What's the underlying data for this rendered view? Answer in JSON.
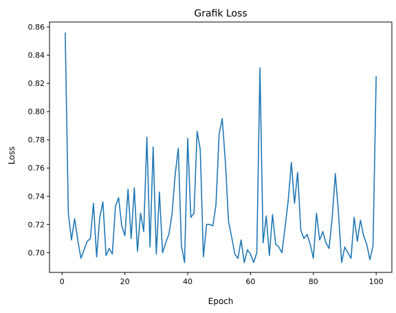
{
  "chart_data": {
    "type": "line",
    "title": "Grafik Loss",
    "xlabel": "Epoch",
    "ylabel": "Loss",
    "xlim": [
      -4,
      105
    ],
    "ylim": [
      0.686,
      0.8635
    ],
    "xticks": [
      0,
      20,
      40,
      60,
      80,
      100
    ],
    "yticks": [
      0.7,
      0.72,
      0.74,
      0.76,
      0.78,
      0.8,
      0.82,
      0.84,
      0.86
    ],
    "ytick_labels": [
      "0.70",
      "0.72",
      "0.74",
      "0.76",
      "0.78",
      "0.80",
      "0.82",
      "0.84",
      "0.86"
    ],
    "grid": false,
    "line_color": "#1f77b4",
    "series": [
      {
        "x": [
          1,
          2,
          3,
          4,
          5,
          6,
          7,
          8,
          9,
          10,
          11,
          12,
          13,
          14,
          15,
          16,
          17,
          18,
          19,
          20,
          21,
          22,
          23,
          24,
          25,
          26,
          27,
          28,
          29,
          30,
          31,
          32,
          33,
          34,
          35,
          36,
          37,
          38,
          39,
          40,
          41,
          42,
          43,
          44,
          45,
          46,
          47,
          48,
          49,
          50,
          51,
          52,
          53,
          54,
          55,
          56,
          57,
          58,
          59,
          60,
          61,
          62,
          63,
          64,
          65,
          66,
          67,
          68,
          69,
          70,
          71,
          72,
          73,
          74,
          75,
          76,
          77,
          78,
          79,
          80,
          81,
          82,
          83,
          84,
          85,
          86,
          87,
          88,
          89,
          90,
          91,
          92,
          93,
          94,
          95,
          96,
          97,
          98,
          99,
          100
        ],
        "values": [
          0.856,
          0.728,
          0.709,
          0.724,
          0.709,
          0.696,
          0.702,
          0.708,
          0.71,
          0.735,
          0.697,
          0.725,
          0.736,
          0.698,
          0.703,
          0.699,
          0.733,
          0.739,
          0.719,
          0.712,
          0.745,
          0.71,
          0.746,
          0.701,
          0.728,
          0.715,
          0.782,
          0.704,
          0.775,
          0.699,
          0.743,
          0.7,
          0.707,
          0.713,
          0.727,
          0.755,
          0.774,
          0.705,
          0.693,
          0.781,
          0.725,
          0.728,
          0.786,
          0.773,
          0.697,
          0.72,
          0.72,
          0.719,
          0.734,
          0.784,
          0.795,
          0.764,
          0.722,
          0.711,
          0.699,
          0.696,
          0.709,
          0.693,
          0.702,
          0.699,
          0.693,
          0.7,
          0.831,
          0.707,
          0.726,
          0.698,
          0.727,
          0.706,
          0.704,
          0.7,
          0.718,
          0.737,
          0.764,
          0.735,
          0.757,
          0.716,
          0.71,
          0.713,
          0.706,
          0.696,
          0.728,
          0.709,
          0.715,
          0.707,
          0.703,
          0.725,
          0.756,
          0.728,
          0.693,
          0.704,
          0.7,
          0.696,
          0.725,
          0.708,
          0.723,
          0.712,
          0.706,
          0.695,
          0.705,
          0.825
        ]
      }
    ]
  }
}
